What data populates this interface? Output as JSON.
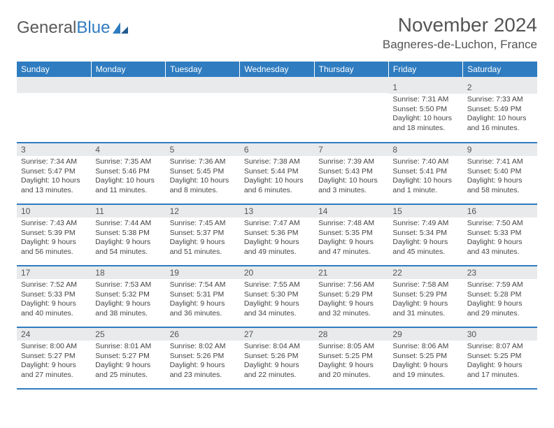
{
  "logo": {
    "text1": "General",
    "text2": "Blue"
  },
  "header": {
    "title": "November 2024",
    "location": "Bagneres-de-Luchon, France"
  },
  "colors": {
    "primary": "#2f7cc0",
    "header_bg": "#e8eaec",
    "text": "#444444"
  },
  "weekdays": [
    "Sunday",
    "Monday",
    "Tuesday",
    "Wednesday",
    "Thursday",
    "Friday",
    "Saturday"
  ],
  "weeks": [
    [
      {
        "n": "",
        "sunrise": "",
        "sunset": "",
        "daylight": ""
      },
      {
        "n": "",
        "sunrise": "",
        "sunset": "",
        "daylight": ""
      },
      {
        "n": "",
        "sunrise": "",
        "sunset": "",
        "daylight": ""
      },
      {
        "n": "",
        "sunrise": "",
        "sunset": "",
        "daylight": ""
      },
      {
        "n": "",
        "sunrise": "",
        "sunset": "",
        "daylight": ""
      },
      {
        "n": "1",
        "sunrise": "Sunrise: 7:31 AM",
        "sunset": "Sunset: 5:50 PM",
        "daylight": "Daylight: 10 hours and 18 minutes."
      },
      {
        "n": "2",
        "sunrise": "Sunrise: 7:33 AM",
        "sunset": "Sunset: 5:49 PM",
        "daylight": "Daylight: 10 hours and 16 minutes."
      }
    ],
    [
      {
        "n": "3",
        "sunrise": "Sunrise: 7:34 AM",
        "sunset": "Sunset: 5:47 PM",
        "daylight": "Daylight: 10 hours and 13 minutes."
      },
      {
        "n": "4",
        "sunrise": "Sunrise: 7:35 AM",
        "sunset": "Sunset: 5:46 PM",
        "daylight": "Daylight: 10 hours and 11 minutes."
      },
      {
        "n": "5",
        "sunrise": "Sunrise: 7:36 AM",
        "sunset": "Sunset: 5:45 PM",
        "daylight": "Daylight: 10 hours and 8 minutes."
      },
      {
        "n": "6",
        "sunrise": "Sunrise: 7:38 AM",
        "sunset": "Sunset: 5:44 PM",
        "daylight": "Daylight: 10 hours and 6 minutes."
      },
      {
        "n": "7",
        "sunrise": "Sunrise: 7:39 AM",
        "sunset": "Sunset: 5:43 PM",
        "daylight": "Daylight: 10 hours and 3 minutes."
      },
      {
        "n": "8",
        "sunrise": "Sunrise: 7:40 AM",
        "sunset": "Sunset: 5:41 PM",
        "daylight": "Daylight: 10 hours and 1 minute."
      },
      {
        "n": "9",
        "sunrise": "Sunrise: 7:41 AM",
        "sunset": "Sunset: 5:40 PM",
        "daylight": "Daylight: 9 hours and 58 minutes."
      }
    ],
    [
      {
        "n": "10",
        "sunrise": "Sunrise: 7:43 AM",
        "sunset": "Sunset: 5:39 PM",
        "daylight": "Daylight: 9 hours and 56 minutes."
      },
      {
        "n": "11",
        "sunrise": "Sunrise: 7:44 AM",
        "sunset": "Sunset: 5:38 PM",
        "daylight": "Daylight: 9 hours and 54 minutes."
      },
      {
        "n": "12",
        "sunrise": "Sunrise: 7:45 AM",
        "sunset": "Sunset: 5:37 PM",
        "daylight": "Daylight: 9 hours and 51 minutes."
      },
      {
        "n": "13",
        "sunrise": "Sunrise: 7:47 AM",
        "sunset": "Sunset: 5:36 PM",
        "daylight": "Daylight: 9 hours and 49 minutes."
      },
      {
        "n": "14",
        "sunrise": "Sunrise: 7:48 AM",
        "sunset": "Sunset: 5:35 PM",
        "daylight": "Daylight: 9 hours and 47 minutes."
      },
      {
        "n": "15",
        "sunrise": "Sunrise: 7:49 AM",
        "sunset": "Sunset: 5:34 PM",
        "daylight": "Daylight: 9 hours and 45 minutes."
      },
      {
        "n": "16",
        "sunrise": "Sunrise: 7:50 AM",
        "sunset": "Sunset: 5:33 PM",
        "daylight": "Daylight: 9 hours and 43 minutes."
      }
    ],
    [
      {
        "n": "17",
        "sunrise": "Sunrise: 7:52 AM",
        "sunset": "Sunset: 5:33 PM",
        "daylight": "Daylight: 9 hours and 40 minutes."
      },
      {
        "n": "18",
        "sunrise": "Sunrise: 7:53 AM",
        "sunset": "Sunset: 5:32 PM",
        "daylight": "Daylight: 9 hours and 38 minutes."
      },
      {
        "n": "19",
        "sunrise": "Sunrise: 7:54 AM",
        "sunset": "Sunset: 5:31 PM",
        "daylight": "Daylight: 9 hours and 36 minutes."
      },
      {
        "n": "20",
        "sunrise": "Sunrise: 7:55 AM",
        "sunset": "Sunset: 5:30 PM",
        "daylight": "Daylight: 9 hours and 34 minutes."
      },
      {
        "n": "21",
        "sunrise": "Sunrise: 7:56 AM",
        "sunset": "Sunset: 5:29 PM",
        "daylight": "Daylight: 9 hours and 32 minutes."
      },
      {
        "n": "22",
        "sunrise": "Sunrise: 7:58 AM",
        "sunset": "Sunset: 5:29 PM",
        "daylight": "Daylight: 9 hours and 31 minutes."
      },
      {
        "n": "23",
        "sunrise": "Sunrise: 7:59 AM",
        "sunset": "Sunset: 5:28 PM",
        "daylight": "Daylight: 9 hours and 29 minutes."
      }
    ],
    [
      {
        "n": "24",
        "sunrise": "Sunrise: 8:00 AM",
        "sunset": "Sunset: 5:27 PM",
        "daylight": "Daylight: 9 hours and 27 minutes."
      },
      {
        "n": "25",
        "sunrise": "Sunrise: 8:01 AM",
        "sunset": "Sunset: 5:27 PM",
        "daylight": "Daylight: 9 hours and 25 minutes."
      },
      {
        "n": "26",
        "sunrise": "Sunrise: 8:02 AM",
        "sunset": "Sunset: 5:26 PM",
        "daylight": "Daylight: 9 hours and 23 minutes."
      },
      {
        "n": "27",
        "sunrise": "Sunrise: 8:04 AM",
        "sunset": "Sunset: 5:26 PM",
        "daylight": "Daylight: 9 hours and 22 minutes."
      },
      {
        "n": "28",
        "sunrise": "Sunrise: 8:05 AM",
        "sunset": "Sunset: 5:25 PM",
        "daylight": "Daylight: 9 hours and 20 minutes."
      },
      {
        "n": "29",
        "sunrise": "Sunrise: 8:06 AM",
        "sunset": "Sunset: 5:25 PM",
        "daylight": "Daylight: 9 hours and 19 minutes."
      },
      {
        "n": "30",
        "sunrise": "Sunrise: 8:07 AM",
        "sunset": "Sunset: 5:25 PM",
        "daylight": "Daylight: 9 hours and 17 minutes."
      }
    ]
  ]
}
